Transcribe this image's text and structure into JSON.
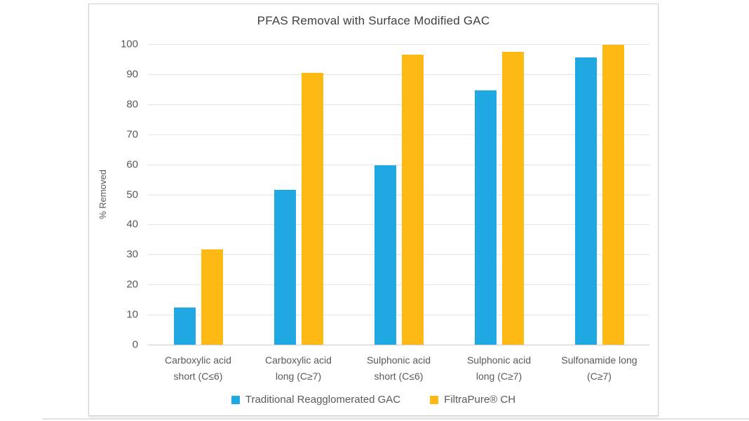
{
  "chart_data": {
    "type": "bar",
    "title": "PFAS Removal with Surface Modified GAC",
    "xlabel": "",
    "ylabel": "% Removed",
    "ylim": [
      0,
      100
    ],
    "ytick_step": 10,
    "yticks": [
      0,
      10,
      20,
      30,
      40,
      50,
      60,
      70,
      80,
      90,
      100
    ],
    "grid": true,
    "legend_position": "bottom",
    "categories": [
      {
        "line1": "Carboxylic acid",
        "line2": "short (C≤6)"
      },
      {
        "line1": "Carboxylic acid",
        "line2": "long (C≥7)"
      },
      {
        "line1": "Sulphonic acid",
        "line2": "short (C≤6)"
      },
      {
        "line1": "Sulphonic acid",
        "line2": "long (C≥7)"
      },
      {
        "line1": "Sulfonamide long",
        "line2": "(C≥7)"
      }
    ],
    "series": [
      {
        "name": "Traditional Reagglomerated GAC",
        "color": "#1FA8E1",
        "values": [
          12.3,
          51.5,
          59.8,
          84.7,
          95.6
        ]
      },
      {
        "name": "FiltraPure® CH",
        "color": "#FFB914",
        "values": [
          31.6,
          90.5,
          96.6,
          97.5,
          99.8
        ]
      }
    ],
    "colors": {
      "title_text": "#404040",
      "axis_text": "#595959",
      "gridline": "#e5e5e5",
      "card_border": "#cfcfcf",
      "bottom_edge": "#dfe3ee"
    }
  }
}
